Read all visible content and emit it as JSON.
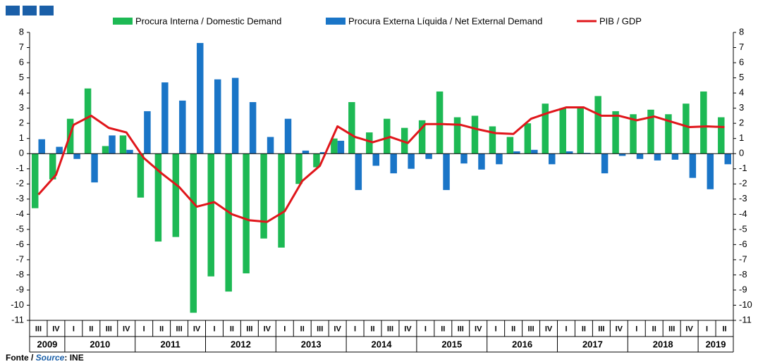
{
  "chart_data": {
    "type": "bar",
    "groups": [
      {
        "name": "2009",
        "categories": [
          "III",
          "IV"
        ]
      },
      {
        "name": "2010",
        "categories": [
          "I",
          "II",
          "III",
          "IV"
        ]
      },
      {
        "name": "2011",
        "categories": [
          "I",
          "II",
          "III",
          "IV"
        ]
      },
      {
        "name": "2012",
        "categories": [
          "I",
          "II",
          "III",
          "IV"
        ]
      },
      {
        "name": "2013",
        "categories": [
          "I",
          "II",
          "III",
          "IV"
        ]
      },
      {
        "name": "2014",
        "categories": [
          "I",
          "II",
          "III",
          "IV"
        ]
      },
      {
        "name": "2015",
        "categories": [
          "I",
          "II",
          "III",
          "IV"
        ]
      },
      {
        "name": "2016",
        "categories": [
          "I",
          "II",
          "III",
          "IV"
        ]
      },
      {
        "name": "2017",
        "categories": [
          "I",
          "II",
          "III",
          "IV"
        ]
      },
      {
        "name": "2018",
        "categories": [
          "I",
          "II",
          "III",
          "IV"
        ]
      },
      {
        "name": "2019",
        "categories": [
          "I",
          "II"
        ]
      }
    ],
    "series": [
      {
        "name": "Procura Interna / Domestic Demand",
        "color": "#1db954",
        "values": [
          -3.6,
          -1.7,
          2.3,
          4.3,
          0.5,
          1.2,
          -2.9,
          -5.8,
          -5.5,
          -10.5,
          -8.1,
          -9.1,
          -7.9,
          -5.6,
          -6.2,
          -2.0,
          -0.9,
          1.0,
          3.4,
          1.4,
          2.3,
          1.7,
          2.2,
          4.1,
          2.4,
          2.5,
          1.8,
          1.1,
          2.0,
          3.3,
          3.0,
          3.1,
          3.8,
          2.8,
          2.6,
          2.9,
          2.6,
          3.3,
          4.1,
          2.4
        ]
      },
      {
        "name": "Procura Externa Líquida / Net External Demand",
        "color": "#1a75c7",
        "values": [
          0.95,
          0.45,
          -0.35,
          -1.9,
          1.2,
          0.25,
          2.8,
          4.7,
          3.5,
          7.3,
          4.9,
          5.0,
          3.4,
          1.1,
          2.3,
          0.2,
          0.1,
          0.85,
          -2.4,
          -0.8,
          -1.3,
          -1.0,
          -0.35,
          -2.4,
          -0.65,
          -1.05,
          -0.7,
          0.15,
          0.25,
          -0.7,
          0.15,
          0.05,
          -1.3,
          -0.15,
          -0.35,
          -0.45,
          -0.4,
          -1.6,
          -2.35,
          -0.7
        ]
      },
      {
        "name": "PIB / GDP",
        "color": "#e0161b",
        "type": "line",
        "values": [
          -2.7,
          -1.4,
          1.9,
          2.5,
          1.7,
          1.4,
          -0.3,
          -1.3,
          -2.2,
          -3.5,
          -3.2,
          -4.0,
          -4.4,
          -4.5,
          -3.8,
          -1.8,
          -0.8,
          1.8,
          1.1,
          0.75,
          1.1,
          0.7,
          1.95,
          1.95,
          1.9,
          1.6,
          1.35,
          1.3,
          2.3,
          2.7,
          3.05,
          3.05,
          2.5,
          2.5,
          2.2,
          2.45,
          2.1,
          1.75,
          1.8,
          1.75
        ]
      }
    ],
    "ylim": [
      -11,
      8
    ],
    "yticks": [
      -11,
      -10,
      -9,
      -8,
      -7,
      -6,
      -5,
      -4,
      -3,
      -2,
      -1,
      0,
      1,
      2,
      3,
      4,
      5,
      6,
      7,
      8
    ],
    "y2lim": [
      -11,
      8
    ],
    "y2ticks": [
      -11,
      -10,
      -9,
      -8,
      -7,
      -6,
      -5,
      -4,
      -3,
      -2,
      -1,
      0,
      1,
      2,
      3,
      4,
      5,
      6,
      7,
      8
    ],
    "source": {
      "prefix": "Fonte / ",
      "emphasis": "Source",
      "suffix": ": INE"
    }
  }
}
